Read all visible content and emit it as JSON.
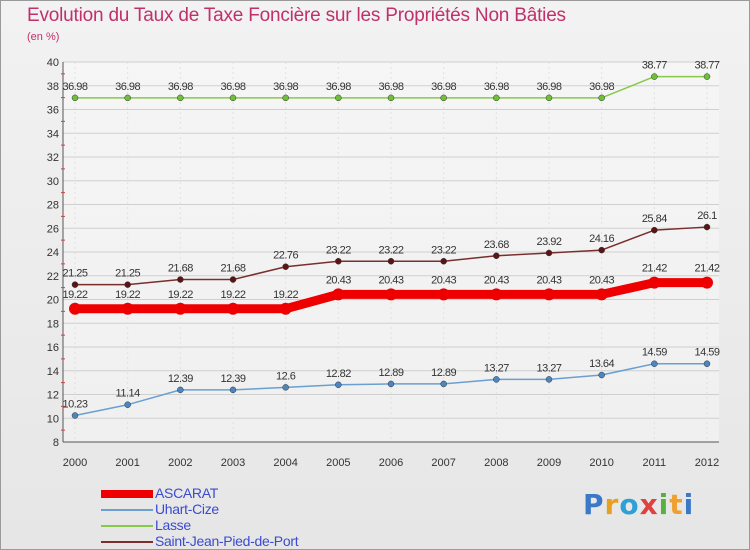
{
  "chart_data": {
    "type": "line",
    "title": "Evolution du Taux de Taxe Foncière sur les Propriétés Non Bâties",
    "ylabel": "(en %)",
    "xlabel": "",
    "ylim": [
      8,
      40
    ],
    "yticks": [
      "8",
      "10",
      "12",
      "14",
      "16",
      "18",
      "20",
      "22",
      "24",
      "26",
      "28",
      "30",
      "32",
      "34",
      "36",
      "38",
      "40"
    ],
    "categories": [
      "2000",
      "2001",
      "2002",
      "2003",
      "2004",
      "2005",
      "2006",
      "2007",
      "2008",
      "2009",
      "2010",
      "2011",
      "2012"
    ],
    "grid": true,
    "series": [
      {
        "name": "Lasse",
        "color": "#88c94a",
        "marker": "#6fbf3a",
        "values": [
          36.98,
          36.98,
          36.98,
          36.98,
          36.98,
          36.98,
          36.98,
          36.98,
          36.98,
          36.98,
          36.98,
          38.77,
          38.77
        ],
        "labels": [
          "36.98",
          "36.98",
          "36.98",
          "36.98",
          "36.98",
          "36.98",
          "36.98",
          "36.98",
          "36.98",
          "36.98",
          "36.98",
          "38.77",
          "38.77"
        ]
      },
      {
        "name": "Saint-Jean-Pied-de-Port",
        "color": "#7a2e2e",
        "marker": "#5a1414",
        "values": [
          21.25,
          21.25,
          21.68,
          21.68,
          22.76,
          23.22,
          23.22,
          23.22,
          23.68,
          23.92,
          24.16,
          25.84,
          26.1
        ],
        "labels": [
          "21.25",
          "21.25",
          "21.68",
          "21.68",
          "22.76",
          "23.22",
          "23.22",
          "23.22",
          "23.68",
          "23.92",
          "24.16",
          "25.84",
          "26.1"
        ]
      },
      {
        "name": "ASCARAT",
        "color": "#ee0000",
        "marker": "#ee0000",
        "values": [
          19.22,
          19.22,
          19.22,
          19.22,
          19.22,
          20.43,
          20.43,
          20.43,
          20.43,
          20.43,
          20.43,
          21.42,
          21.42
        ],
        "labels": [
          "19.22",
          "19.22",
          "19.22",
          "19.22",
          "19.22",
          "20.43",
          "20.43",
          "20.43",
          "20.43",
          "20.43",
          "20.43",
          "21.42",
          "21.42"
        ]
      },
      {
        "name": "Uhart-Cize",
        "color": "#6a9fd0",
        "marker": "#4a86c2",
        "values": [
          10.23,
          11.14,
          12.39,
          12.39,
          12.6,
          12.82,
          12.89,
          12.89,
          13.27,
          13.27,
          13.64,
          14.59,
          14.59
        ],
        "labels": [
          "10.23",
          "11.14",
          "12.39",
          "12.39",
          "12.6",
          "12.82",
          "12.89",
          "12.89",
          "13.27",
          "13.27",
          "13.64",
          "14.59",
          "14.59"
        ]
      }
    ],
    "legend": [
      "ASCARAT",
      "Uhart-Cize",
      "Lasse",
      "Saint-Jean-Pied-de-Port"
    ],
    "legend_placement": "bottom-left"
  },
  "logo": {
    "letters": [
      "P",
      "r",
      "o",
      "x",
      "i",
      "t",
      "i"
    ],
    "colors": [
      "#3a78c8",
      "#e8a020",
      "#2ea0d8",
      "#e04040",
      "#58b040",
      "#f0a030",
      "#3a78c8"
    ]
  }
}
